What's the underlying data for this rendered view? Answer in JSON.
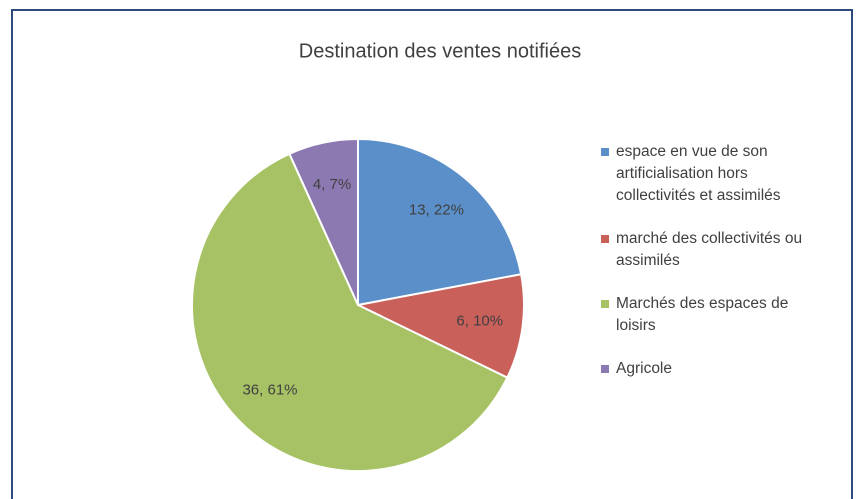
{
  "chart_data": {
    "type": "pie",
    "title": "Destination des ventes notifiées",
    "categories": [
      "espace en vue de son artificialisation hors collectivités et assimilés",
      "marché des collectivités ou assimilés",
      "Marchés des espaces de loisirs",
      "Agricole"
    ],
    "values": [
      13,
      6,
      36,
      4
    ],
    "value_labels": [
      "13, 22%",
      "6, 10%",
      "36, 61%",
      "4, 7%"
    ],
    "colors": [
      "#5b8fc9",
      "#c9605a",
      "#a6c264",
      "#8d79b1"
    ],
    "legend": "right"
  }
}
